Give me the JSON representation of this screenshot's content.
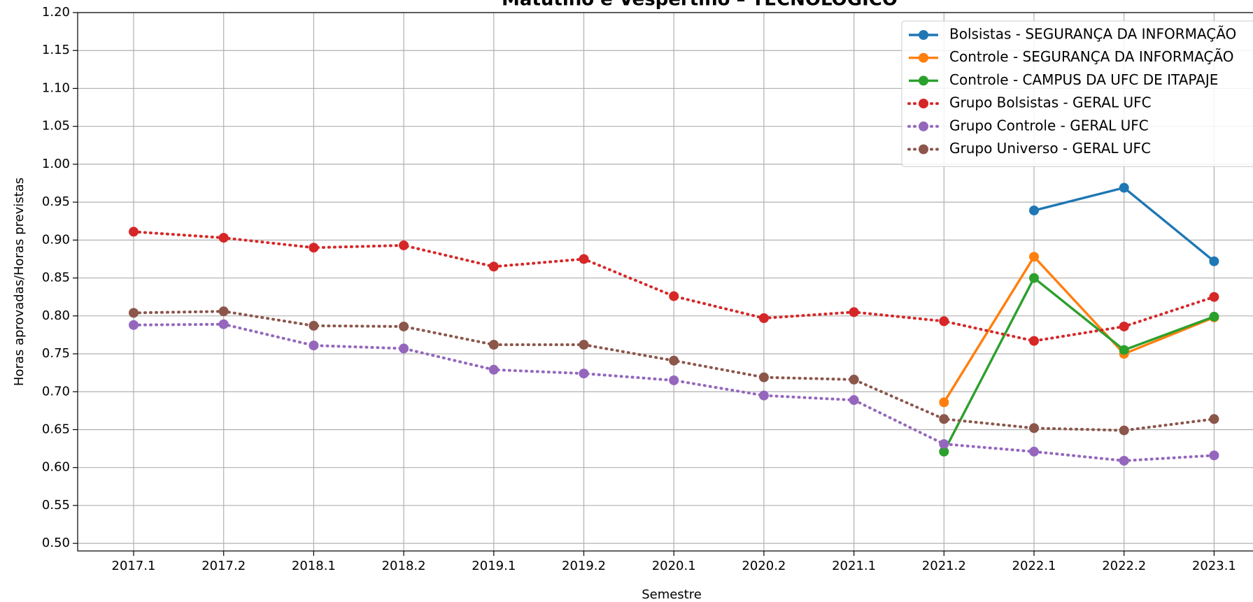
{
  "chart_data": {
    "type": "line",
    "title": "Matutino e Vespertino – TECNOLÓGICO",
    "xlabel": "Semestre",
    "ylabel": "Horas aprovadas/Horas previstas",
    "categories": [
      "2017.1",
      "2017.2",
      "2018.1",
      "2018.2",
      "2019.1",
      "2019.2",
      "2020.1",
      "2020.2",
      "2021.1",
      "2021.2",
      "2022.1",
      "2022.2",
      "2023.1"
    ],
    "ylim": [
      0.49,
      1.2
    ],
    "yticks": [
      {
        "value": 0.5,
        "label": "0.50"
      },
      0.55,
      {
        "value": 0.6,
        "label": "0.60"
      },
      0.65,
      {
        "value": 0.7,
        "label": "0.70"
      },
      0.75,
      {
        "value": 0.8,
        "label": "0.80"
      },
      0.85,
      {
        "value": 0.9,
        "label": "0.90"
      },
      0.95,
      {
        "value": 1.0,
        "label": "1.00"
      },
      1.05,
      {
        "value": 1.1,
        "label": "1.10"
      },
      1.15,
      {
        "value": 1.2,
        "label": "1.20"
      }
    ],
    "grid": true,
    "legend": "upper right",
    "series": [
      {
        "name": "Bolsistas - SEGURANÇA DA INFORMAÇÃO",
        "color": "#1f77b4",
        "linestyle": "solid",
        "values": [
          null,
          null,
          null,
          null,
          null,
          null,
          null,
          null,
          null,
          null,
          0.939,
          0.969,
          0.872
        ]
      },
      {
        "name": "Controle - SEGURANÇA DA INFORMAÇÃO",
        "color": "#ff7f0e",
        "linestyle": "solid",
        "values": [
          null,
          null,
          null,
          null,
          null,
          null,
          null,
          null,
          null,
          0.686,
          0.878,
          0.75,
          0.798
        ]
      },
      {
        "name": "Controle - CAMPUS DA UFC DE ITAPAJE",
        "color": "#2ca02c",
        "linestyle": "solid",
        "values": [
          null,
          null,
          null,
          null,
          null,
          null,
          null,
          null,
          null,
          0.621,
          0.85,
          0.755,
          0.799
        ]
      },
      {
        "name": "Grupo Bolsistas - GERAL UFC",
        "color": "#d62728",
        "linestyle": "dotted",
        "values": [
          0.911,
          0.903,
          0.89,
          0.893,
          0.865,
          0.875,
          0.826,
          0.797,
          0.805,
          0.793,
          0.767,
          0.786,
          0.825
        ]
      },
      {
        "name": "Grupo Controle - GERAL UFC",
        "color": "#9467bd",
        "linestyle": "dotted",
        "values": [
          0.788,
          0.789,
          0.761,
          0.757,
          0.729,
          0.724,
          0.715,
          0.695,
          0.689,
          0.631,
          0.621,
          0.609,
          0.616
        ]
      },
      {
        "name": "Grupo Universo - GERAL UFC",
        "color": "#8c564b",
        "linestyle": "dotted",
        "values": [
          0.804,
          0.806,
          0.787,
          0.786,
          0.762,
          0.762,
          0.741,
          0.719,
          0.716,
          0.664,
          0.652,
          0.649,
          0.664
        ]
      }
    ]
  }
}
